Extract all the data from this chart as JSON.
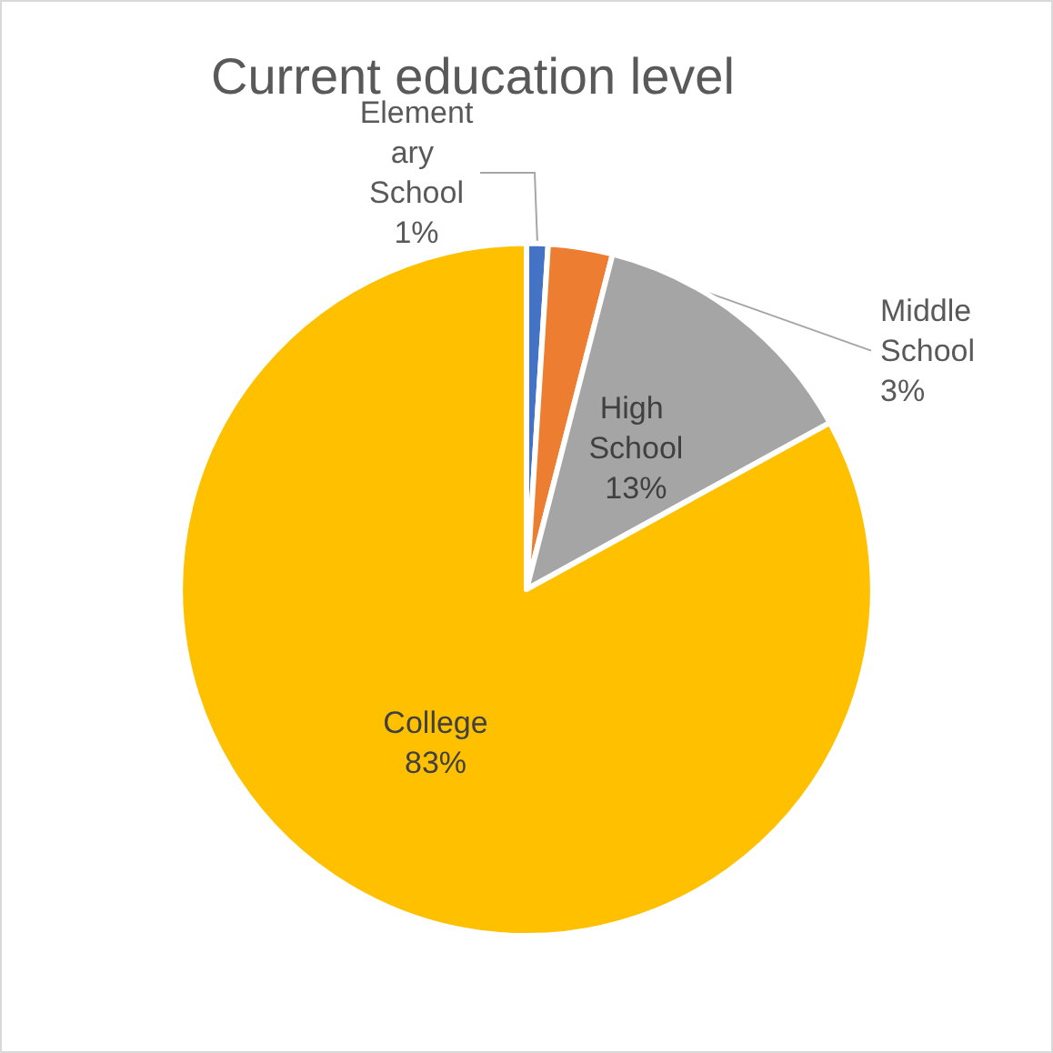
{
  "chart_data": {
    "type": "pie",
    "title": "Current education level",
    "categories": [
      "Elementary School",
      "Middle School",
      "High School",
      "College"
    ],
    "values": [
      1,
      3,
      13,
      83
    ],
    "value_labels": [
      "1%",
      "3%",
      "13%",
      "83%"
    ],
    "colors": [
      "#4472c4",
      "#ed7d31",
      "#a5a5a5",
      "#ffc000"
    ],
    "legend": false
  }
}
